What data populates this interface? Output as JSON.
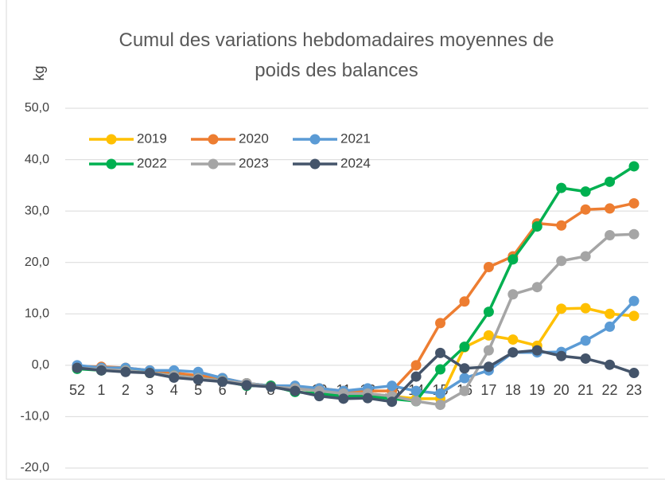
{
  "chart_data": {
    "type": "line",
    "title": "Cumul des variations hebdomadaires moyennes de poids des balances",
    "y_label": "kg",
    "categories": [
      "52",
      "1",
      "2",
      "3",
      "4",
      "5",
      "6",
      "7",
      "8",
      "9",
      "10",
      "11",
      "12",
      "13",
      "14",
      "15",
      "16",
      "17",
      "18",
      "19",
      "20",
      "21",
      "22",
      "23"
    ],
    "series": [
      {
        "name": "2019",
        "color": "#FFC000",
        "values": [
          -0.5,
          -0.5,
          -1,
          -1.5,
          -2,
          -2.5,
          -3,
          -3.5,
          -4,
          -4.5,
          -5,
          -5.5,
          -5.5,
          -6,
          -6.5,
          -6.5,
          3.5,
          5.8,
          5,
          3.8,
          11,
          11.1,
          10,
          9.6
        ]
      },
      {
        "name": "2020",
        "color": "#ED7D31",
        "values": [
          -0.2,
          -0.3,
          -0.5,
          -1,
          -1.5,
          -2,
          -2.5,
          -3.5,
          -4,
          -4.5,
          -4.5,
          -5,
          -5,
          -5,
          0,
          8.2,
          12.4,
          19.1,
          21.2,
          27.6,
          27.2,
          30.3,
          30.5,
          31.5
        ]
      },
      {
        "name": "2021",
        "color": "#5B9BD5",
        "values": [
          0,
          -0.5,
          -0.5,
          -1,
          -1,
          -1.3,
          -2.5,
          -3.5,
          -4,
          -4,
          -4.5,
          -5,
          -4.5,
          -4,
          -5,
          -5.5,
          -2.5,
          -1,
          2.5,
          2.5,
          2.6,
          4.8,
          7.5,
          12.5
        ]
      },
      {
        "name": "2022",
        "color": "#00B050",
        "values": [
          -0.7,
          -1,
          -1,
          -1.5,
          -2,
          -2.5,
          -3,
          -4,
          -4,
          -5.2,
          -5.5,
          -6,
          -6,
          -6.5,
          -7,
          -0.8,
          3.6,
          10.4,
          20.6,
          27,
          34.5,
          33.8,
          35.7,
          38.7
        ]
      },
      {
        "name": "2023",
        "color": "#A5A5A5",
        "values": [
          -0.5,
          -0.8,
          -1,
          -1.5,
          -2,
          -2.5,
          -3,
          -3.5,
          -4.2,
          -4.5,
          -5,
          -5.5,
          -5.5,
          -6,
          -7,
          -7.7,
          -5,
          2.9,
          13.8,
          15.2,
          20.3,
          21.2,
          25.3,
          25.5
        ]
      },
      {
        "name": "2024",
        "color": "#44546A",
        "values": [
          -0.5,
          -1,
          -1.3,
          -1.5,
          -2.4,
          -2.8,
          -3.2,
          -3.9,
          -4.2,
          -5,
          -6,
          -6.5,
          -6.4,
          -7.1,
          -2.2,
          2.4,
          -0.6,
          -0.3,
          2.5,
          2.9,
          1.8,
          1.3,
          0.1,
          -1.5
        ]
      }
    ],
    "ylim": [
      -20,
      50
    ],
    "yticks": [
      {
        "value": -20,
        "label": "-20,0"
      },
      {
        "value": -10,
        "label": "-10,0"
      },
      {
        "value": 0,
        "label": "0,0"
      },
      {
        "value": 10,
        "label": "10,0"
      },
      {
        "value": 20,
        "label": "20,0"
      },
      {
        "value": 30,
        "label": "30,0"
      },
      {
        "value": 40,
        "label": "40,0"
      },
      {
        "value": 50,
        "label": "50,0"
      }
    ],
    "grid": true,
    "legend": "upper left"
  }
}
